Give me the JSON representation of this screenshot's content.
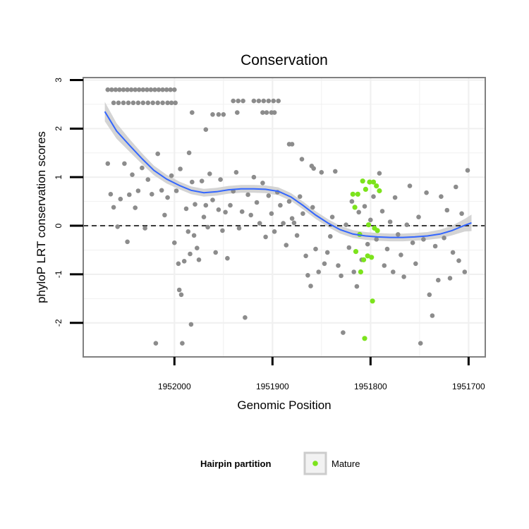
{
  "chart_data": {
    "type": "scatter",
    "title": "Conservation",
    "xlabel": "Genomic Position",
    "ylabel": "phyloP LRT conservation scores",
    "x_reversed": true,
    "xlim": [
      1952093,
      1951683
    ],
    "ylim": [
      -2.7,
      3.05
    ],
    "x_ticks": [
      1952000,
      1951900,
      1951800,
      1951700
    ],
    "x_tick_labels": [
      "1952000",
      "1951900",
      "1951800",
      "1951700"
    ],
    "y_ticks": [
      -2,
      -1,
      0,
      1,
      2,
      3
    ],
    "y_tick_labels": [
      "-2",
      "-1",
      "0",
      "1",
      "2",
      "3"
    ],
    "grid": true,
    "reference_line": {
      "y": 0,
      "style": "dashed",
      "color": "#000000"
    },
    "colors": {
      "background_points": "#8c8c8c",
      "mature_points": "#7ce31c",
      "smooth_line": "#3366ff",
      "confidence_band": "#cccccc",
      "grid": "#f0f0f0",
      "panel_border": "#808080"
    },
    "legend": {
      "title": "Hairpin partition",
      "placement": "bottom",
      "entries": [
        {
          "label": "Mature",
          "color": "#7ce31c"
        }
      ]
    },
    "smooth": {
      "x": [
        1952071,
        1952059,
        1952046,
        1952033,
        1952021,
        1952008,
        1951995,
        1951983,
        1951970,
        1951957,
        1951945,
        1951932,
        1951919,
        1951907,
        1951894,
        1951881,
        1951869,
        1951856,
        1951843,
        1951831,
        1951818,
        1951805,
        1951793,
        1951780,
        1951767,
        1951755,
        1951742,
        1951729,
        1951717,
        1951704,
        1951697
      ],
      "y": [
        2.35,
        1.95,
        1.66,
        1.38,
        1.14,
        0.96,
        0.83,
        0.73,
        0.68,
        0.7,
        0.74,
        0.76,
        0.76,
        0.75,
        0.71,
        0.59,
        0.42,
        0.22,
        0.05,
        -0.08,
        -0.17,
        -0.21,
        -0.23,
        -0.24,
        -0.24,
        -0.23,
        -0.21,
        -0.17,
        -0.1,
        0.01,
        0.06
      ],
      "se": [
        0.2,
        0.16,
        0.13,
        0.11,
        0.1,
        0.09,
        0.08,
        0.08,
        0.08,
        0.08,
        0.08,
        0.08,
        0.08,
        0.08,
        0.08,
        0.08,
        0.08,
        0.08,
        0.08,
        0.08,
        0.08,
        0.08,
        0.08,
        0.08,
        0.08,
        0.08,
        0.08,
        0.09,
        0.1,
        0.13,
        0.17
      ]
    },
    "series": [
      {
        "points": [
          [
            1952068,
            2.8
          ],
          [
            1952064,
            2.8
          ],
          [
            1952060,
            2.8
          ],
          [
            1952056,
            2.8
          ],
          [
            1952052,
            2.8
          ],
          [
            1952048,
            2.8
          ],
          [
            1952044,
            2.8
          ],
          [
            1952040,
            2.8
          ],
          [
            1952036,
            2.8
          ],
          [
            1952032,
            2.8
          ],
          [
            1952028,
            2.8
          ],
          [
            1952024,
            2.8
          ],
          [
            1952020,
            2.8
          ],
          [
            1952016,
            2.8
          ],
          [
            1952012,
            2.8
          ],
          [
            1952008,
            2.8
          ],
          [
            1952004,
            2.8
          ],
          [
            1952000,
            2.8
          ],
          [
            1952062,
            2.53
          ],
          [
            1952057,
            2.53
          ],
          [
            1952052,
            2.53
          ],
          [
            1952047,
            2.53
          ],
          [
            1952042,
            2.53
          ],
          [
            1952037,
            2.53
          ],
          [
            1952032,
            2.53
          ],
          [
            1952027,
            2.53
          ],
          [
            1952022,
            2.53
          ],
          [
            1952017,
            2.53
          ],
          [
            1952012,
            2.53
          ],
          [
            1952007,
            2.53
          ],
          [
            1952003,
            2.53
          ],
          [
            1951999,
            2.53
          ],
          [
            1951982,
            2.33
          ],
          [
            1951961,
            2.29
          ],
          [
            1951955,
            2.29
          ],
          [
            1951950,
            2.29
          ],
          [
            1951968,
            1.98
          ],
          [
            1951940,
            2.57
          ],
          [
            1951935,
            2.57
          ],
          [
            1951930,
            2.57
          ],
          [
            1951919,
            2.57
          ],
          [
            1951914,
            2.57
          ],
          [
            1951909,
            2.57
          ],
          [
            1951904,
            2.57
          ],
          [
            1951899,
            2.57
          ],
          [
            1951894,
            2.57
          ],
          [
            1951936,
            2.33
          ],
          [
            1951910,
            2.33
          ],
          [
            1951906,
            2.33
          ],
          [
            1951901,
            2.33
          ],
          [
            1951898,
            2.33
          ],
          [
            1951883,
            1.68
          ],
          [
            1951880,
            1.68
          ],
          [
            1951870,
            1.37
          ],
          [
            1951860,
            1.23
          ],
          [
            1951858,
            1.18
          ],
          [
            1952068,
            1.28
          ],
          [
            1952065,
            0.65
          ],
          [
            1952062,
            0.38
          ],
          [
            1952058,
            -0.02
          ],
          [
            1952055,
            0.55
          ],
          [
            1952051,
            1.28
          ],
          [
            1952048,
            -0.33
          ],
          [
            1952046,
            0.64
          ],
          [
            1952043,
            1.05
          ],
          [
            1952040,
            0.37
          ],
          [
            1952037,
            0.72
          ],
          [
            1952033,
            1.19
          ],
          [
            1952030,
            -0.05
          ],
          [
            1952027,
            0.95
          ],
          [
            1952023,
            0.65
          ],
          [
            1952019,
            -2.42
          ],
          [
            1952017,
            1.48
          ],
          [
            1952013,
            0.73
          ],
          [
            1952010,
            0.22
          ],
          [
            1952007,
            0.58
          ],
          [
            1952003,
            1.03
          ],
          [
            1952000,
            -0.35
          ],
          [
            1951998,
            0.72
          ],
          [
            1951996,
            -0.78
          ],
          [
            1951995,
            -1.32
          ],
          [
            1951994,
            1.17
          ],
          [
            1951993,
            -1.42
          ],
          [
            1951992,
            -2.42
          ],
          [
            1951990,
            -0.73
          ],
          [
            1951988,
            0.35
          ],
          [
            1951986,
            -0.12
          ],
          [
            1951985,
            1.5
          ],
          [
            1951984,
            -0.58
          ],
          [
            1951983,
            -2.03
          ],
          [
            1951982,
            0.9
          ],
          [
            1951980,
            -0.2
          ],
          [
            1951979,
            0.44
          ],
          [
            1951977,
            -0.46
          ],
          [
            1951975,
            -0.7
          ],
          [
            1951972,
            0.92
          ],
          [
            1951970,
            0.18
          ],
          [
            1951968,
            0.42
          ],
          [
            1951966,
            -0.03
          ],
          [
            1951964,
            1.07
          ],
          [
            1951961,
            0.53
          ],
          [
            1951958,
            -0.55
          ],
          [
            1951955,
            0.33
          ],
          [
            1951953,
            0.95
          ],
          [
            1951951,
            -0.1
          ],
          [
            1951948,
            0.28
          ],
          [
            1951946,
            -0.67
          ],
          [
            1951943,
            0.42
          ],
          [
            1951940,
            0.71
          ],
          [
            1951937,
            1.1
          ],
          [
            1951934,
            -0.05
          ],
          [
            1951931,
            0.29
          ],
          [
            1951928,
            -1.89
          ],
          [
            1951925,
            0.64
          ],
          [
            1951922,
            0.22
          ],
          [
            1951919,
            1.0
          ],
          [
            1951916,
            0.48
          ],
          [
            1951913,
            0.05
          ],
          [
            1951910,
            0.88
          ],
          [
            1951907,
            -0.23
          ],
          [
            1951904,
            0.62
          ],
          [
            1951901,
            0.25
          ],
          [
            1951898,
            -0.12
          ],
          [
            1951895,
            0.69
          ],
          [
            1951892,
            0.42
          ],
          [
            1951889,
            0.05
          ],
          [
            1951886,
            -0.4
          ],
          [
            1951883,
            0.5
          ],
          [
            1951880,
            0.15
          ],
          [
            1951878,
            0.06
          ],
          [
            1951875,
            -0.2
          ],
          [
            1951872,
            0.6
          ],
          [
            1951869,
            0.25
          ],
          [
            1951866,
            -0.62
          ],
          [
            1951864,
            -1.02
          ],
          [
            1951861,
            -1.24
          ],
          [
            1951859,
            0.38
          ],
          [
            1951856,
            -0.48
          ],
          [
            1951853,
            -0.95
          ],
          [
            1951850,
            1.1
          ],
          [
            1951847,
            -0.78
          ],
          [
            1951844,
            -0.55
          ],
          [
            1951841,
            -0.22
          ],
          [
            1951839,
            0.18
          ],
          [
            1951836,
            1.12
          ],
          [
            1951833,
            -0.82
          ],
          [
            1951830,
            -1.03
          ],
          [
            1951828,
            -2.2
          ],
          [
            1951825,
            0.02
          ],
          [
            1951822,
            -0.45
          ],
          [
            1951819,
            0.5
          ],
          [
            1951817,
            -0.95
          ],
          [
            1951814,
            -1.25
          ],
          [
            1951812,
            0.28
          ],
          [
            1951809,
            -0.7
          ],
          [
            1951806,
            0.4
          ],
          [
            1951803,
            -0.38
          ],
          [
            1951800,
            0.12
          ],
          [
            1951797,
            0.6
          ],
          [
            1951794,
            -0.28
          ],
          [
            1951791,
            1.08
          ],
          [
            1951788,
            0.3
          ],
          [
            1951786,
            -0.82
          ],
          [
            1951783,
            -0.48
          ],
          [
            1951780,
            0.08
          ],
          [
            1951777,
            -0.95
          ],
          [
            1951775,
            0.58
          ],
          [
            1951772,
            -0.18
          ],
          [
            1951769,
            -0.6
          ],
          [
            1951766,
            -1.05
          ],
          [
            1951763,
            0.02
          ],
          [
            1951760,
            0.82
          ],
          [
            1951757,
            -0.35
          ],
          [
            1951754,
            -0.78
          ],
          [
            1951751,
            0.18
          ],
          [
            1951749,
            -2.42
          ],
          [
            1951746,
            -0.28
          ],
          [
            1951743,
            0.68
          ],
          [
            1951740,
            -1.42
          ],
          [
            1951737,
            -1.85
          ],
          [
            1951734,
            -0.42
          ],
          [
            1951731,
            -1.12
          ],
          [
            1951728,
            0.6
          ],
          [
            1951725,
            -0.25
          ],
          [
            1951722,
            0.32
          ],
          [
            1951719,
            -1.08
          ],
          [
            1951716,
            -0.55
          ],
          [
            1951713,
            0.8
          ],
          [
            1951710,
            -0.72
          ],
          [
            1951707,
            0.25
          ],
          [
            1951704,
            -0.95
          ],
          [
            1951701,
            1.14
          ]
        ]
      },
      {
        "name": "Mature",
        "points": [
          [
            1951818,
            0.65
          ],
          [
            1951816,
            0.38
          ],
          [
            1951815,
            -0.53
          ],
          [
            1951813,
            0.65
          ],
          [
            1951811,
            -0.18
          ],
          [
            1951810,
            -0.95
          ],
          [
            1951808,
            0.92
          ],
          [
            1951807,
            -0.7
          ],
          [
            1951806,
            -2.32
          ],
          [
            1951805,
            0.75
          ],
          [
            1951803,
            -0.62
          ],
          [
            1951802,
            0.02
          ],
          [
            1951801,
            0.9
          ],
          [
            1951799,
            -0.65
          ],
          [
            1951798,
            -1.55
          ],
          [
            1951797,
            0.9
          ],
          [
            1951796,
            -0.05
          ],
          [
            1951794,
            0.82
          ],
          [
            1951793,
            -0.1
          ],
          [
            1951791,
            0.72
          ]
        ]
      }
    ]
  }
}
